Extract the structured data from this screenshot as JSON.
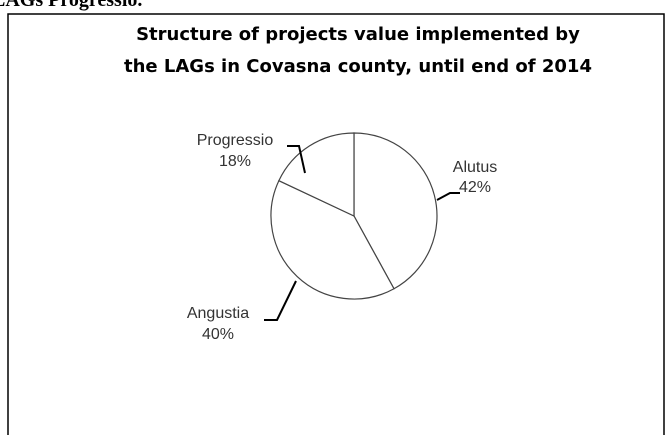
{
  "context_text": "LAGs Progressio.",
  "chart_data": {
    "type": "pie",
    "title": [
      "Structure of projects value implemented by",
      "the LAGs  in Covasna county, until end of 2014"
    ],
    "categories": [
      "Alutus",
      "Angustia",
      "Progressio"
    ],
    "values": [
      42,
      40,
      18
    ],
    "value_labels": [
      "42%",
      "40%",
      "18%"
    ],
    "color": "#ffffff"
  }
}
